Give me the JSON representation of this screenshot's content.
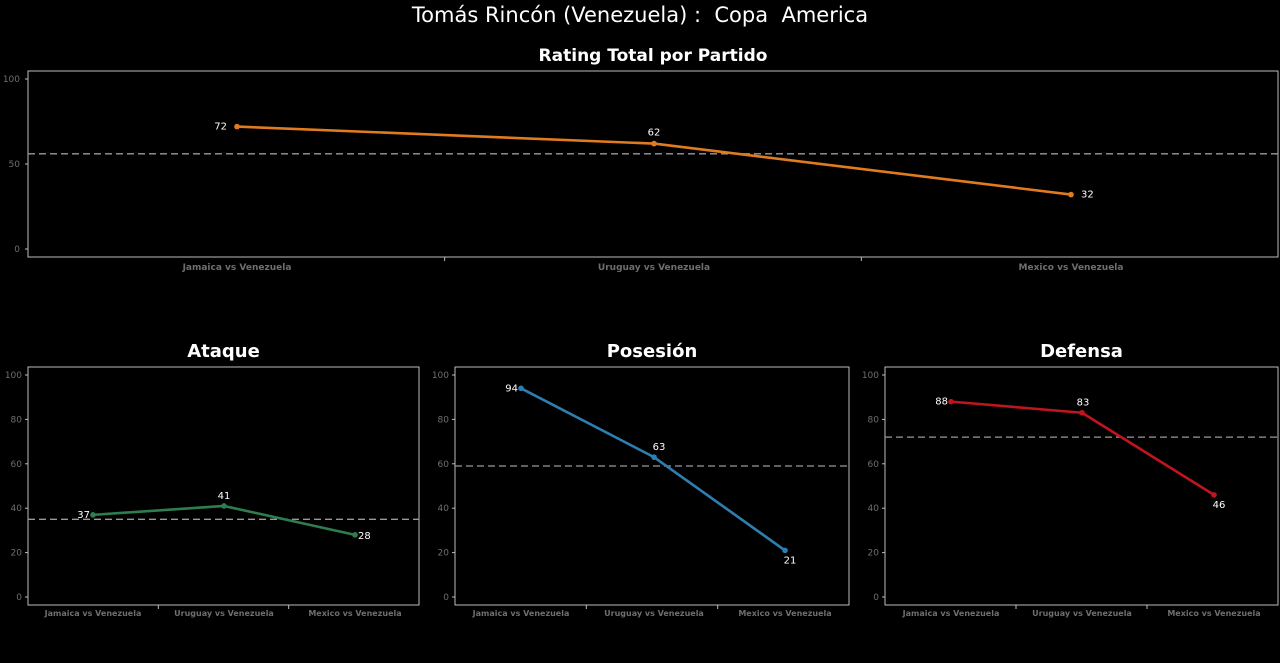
{
  "header": {
    "title": "Tomás Rincón (Venezuela) :  Copa  America"
  },
  "chart_data": [
    {
      "id": "total",
      "type": "line",
      "title": "Rating Total por Partido",
      "categories": [
        "Jamaica vs Venezuela",
        "Uruguay vs Venezuela",
        "Mexico vs Venezuela"
      ],
      "values": [
        72,
        62,
        32
      ],
      "reference_line": 56,
      "ylim": [
        0,
        100
      ],
      "yticks": [
        0,
        50,
        100
      ],
      "color": "#e07b1f"
    },
    {
      "id": "ataque",
      "type": "line",
      "title": "Ataque",
      "categories": [
        "Jamaica vs Venezuela",
        "Uruguay vs Venezuela",
        "Mexico vs Venezuela"
      ],
      "values": [
        37,
        41,
        28
      ],
      "reference_line": 35,
      "ylim": [
        0,
        100
      ],
      "yticks": [
        0,
        20,
        40,
        60,
        80,
        100
      ],
      "color": "#2e7d4f"
    },
    {
      "id": "posesion",
      "type": "line",
      "title": "Posesión",
      "categories": [
        "Jamaica vs Venezuela",
        "Uruguay vs Venezuela",
        "Mexico vs Venezuela"
      ],
      "values": [
        94,
        63,
        21
      ],
      "reference_line": 59,
      "ylim": [
        0,
        100
      ],
      "yticks": [
        0,
        20,
        40,
        60,
        80,
        100
      ],
      "color": "#2e7eb0"
    },
    {
      "id": "defensa",
      "type": "line",
      "title": "Defensa",
      "categories": [
        "Jamaica vs Venezuela",
        "Uruguay vs Venezuela",
        "Mexico vs Venezuela"
      ],
      "values": [
        88,
        83,
        46
      ],
      "reference_line": 72,
      "ylim": [
        0,
        100
      ],
      "yticks": [
        0,
        20,
        40,
        60,
        80,
        100
      ],
      "color": "#c0141e"
    }
  ]
}
